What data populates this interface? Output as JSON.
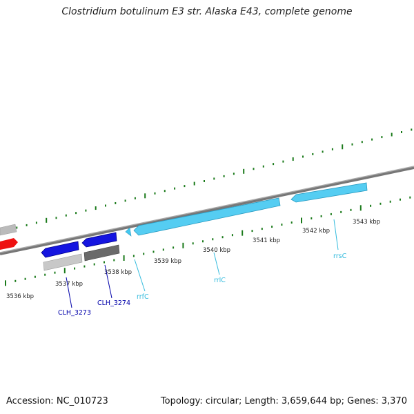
{
  "title": "Clostridium botulinum E3 str. Alaska E43, complete genome",
  "footer": {
    "accession": "Accession: NC_010723",
    "summary": "Topology: circular; Length: 3,659,644 bp; Genes: 3,370"
  },
  "scale_labels": [
    "3536 kbp",
    "3537 kbp",
    "3538 kbp",
    "3539 kbp",
    "3540 kbp",
    "3541 kbp",
    "3542 kbp",
    "3543 kbp"
  ],
  "gene_labels": [
    {
      "name": "CLH_3273",
      "color": "#0000aa"
    },
    {
      "name": "CLH_3274",
      "color": "#0000aa"
    },
    {
      "name": "rrfC",
      "color": "#33bbdd"
    },
    {
      "name": "rrlC",
      "color": "#33bbdd"
    },
    {
      "name": "rrsC",
      "color": "#33bbdd"
    }
  ],
  "colors": {
    "backbone": "#888888",
    "tick": "#1a7a1a",
    "cds_blue": "#1515e0",
    "rrna": "#44c8f0",
    "grey_light": "#bbbbbb",
    "grey_dark": "#666666",
    "red": "#ee1111"
  }
}
